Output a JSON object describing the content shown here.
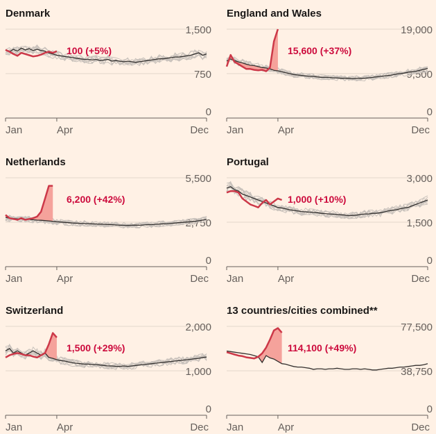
{
  "colors": {
    "background": "#fff1e5",
    "current_year": "#cc3848",
    "average": "#33302e",
    "historical": "#c8c1bb",
    "excess_fill": "#f5a29b",
    "grid": "#e3d6cc"
  },
  "chart_data": [
    {
      "type": "line",
      "title": "Denmark",
      "ylim": [
        0,
        1500
      ],
      "yticks": [
        "1,500",
        "750",
        "0"
      ],
      "ytick_values": [
        1500,
        750,
        0
      ],
      "xticks": [
        "Jan",
        "Apr",
        "Dec"
      ],
      "xtick_weeks": [
        1,
        14,
        52
      ],
      "annotation": "100 (+5%)",
      "shade_excess": false,
      "historical_lines": true,
      "series": [
        {
          "role": "current",
          "values": [
            1150,
            1120,
            1080,
            1050,
            1100,
            1080,
            1060,
            1040,
            1050,
            1070,
            1100,
            1120,
            1100,
            1130
          ]
        },
        {
          "role": "average",
          "values": [
            1150,
            1120,
            1160,
            1130,
            1180,
            1150,
            1170,
            1140,
            1160,
            1140,
            1130,
            1100,
            1080,
            1060,
            1050,
            1040,
            1030,
            1020,
            1010,
            1000,
            990,
            990,
            980,
            990,
            970,
            980,
            990,
            960,
            970,
            960,
            950,
            960,
            950,
            940,
            950,
            960,
            970,
            980,
            990,
            1000,
            1000,
            1010,
            1020,
            1030,
            1030,
            1040,
            1050,
            1060,
            1080,
            1100,
            1060,
            1080
          ]
        }
      ]
    },
    {
      "type": "line",
      "title": "England and Wales",
      "ylim": [
        0,
        19000
      ],
      "yticks": [
        "19,000",
        "9,500",
        "0"
      ],
      "ytick_values": [
        19000,
        9500,
        0
      ],
      "xticks": [
        "Jan",
        "Apr",
        "Dec"
      ],
      "xtick_weeks": [
        1,
        14,
        52
      ],
      "annotation": "15,600 (+37%)",
      "shade_excess": true,
      "historical_lines": true,
      "series": [
        {
          "role": "current",
          "values": [
            11000,
            13500,
            12000,
            11500,
            11000,
            10500,
            10500,
            10300,
            10200,
            10300,
            10000,
            10800,
            16400,
            19000
          ]
        },
        {
          "role": "average",
          "values": [
            12200,
            12600,
            12300,
            12000,
            11800,
            11500,
            11300,
            11200,
            11000,
            10800,
            10700,
            10500,
            10200,
            10100,
            9900,
            9700,
            9500,
            9300,
            9200,
            9100,
            9000,
            8900,
            8900,
            8800,
            8700,
            8700,
            8700,
            8600,
            8600,
            8500,
            8500,
            8500,
            8400,
            8500,
            8500,
            8500,
            8600,
            8700,
            8800,
            8900,
            9000,
            9100,
            9200,
            9400,
            9500,
            9600,
            9800,
            9900,
            10000,
            10200,
            10400,
            10600
          ]
        }
      ]
    },
    {
      "type": "line",
      "title": "Netherlands",
      "ylim": [
        0,
        5500
      ],
      "yticks": [
        "5,500",
        "2,750",
        "0"
      ],
      "ytick_values": [
        5500,
        2750,
        0
      ],
      "xticks": [
        "Jan",
        "Apr",
        "Dec"
      ],
      "xtick_weeks": [
        1,
        14,
        52
      ],
      "annotation": "6,200 (+42%)",
      "shade_excess": true,
      "historical_lines": true,
      "series": [
        {
          "role": "current",
          "values": [
            3200,
            3000,
            2950,
            2900,
            3000,
            2900,
            2950,
            3000,
            3100,
            3400,
            4200,
            5000,
            5000
          ]
        },
        {
          "role": "average",
          "values": [
            3050,
            3000,
            2980,
            2960,
            2950,
            2930,
            2920,
            2900,
            2880,
            2870,
            2850,
            2830,
            2800,
            2780,
            2760,
            2740,
            2720,
            2700,
            2690,
            2680,
            2670,
            2660,
            2650,
            2640,
            2630,
            2620,
            2610,
            2600,
            2580,
            2560,
            2560,
            2550,
            2560,
            2570,
            2560,
            2580,
            2600,
            2600,
            2620,
            2640,
            2650,
            2660,
            2680,
            2700,
            2720,
            2740,
            2760,
            2780,
            2800,
            2840,
            2880,
            2920
          ]
        }
      ]
    },
    {
      "type": "line",
      "title": "Portugal",
      "ylim": [
        0,
        3000
      ],
      "yticks": [
        "3,000",
        "1,500",
        "0"
      ],
      "ytick_values": [
        3000,
        1500,
        0
      ],
      "xticks": [
        "Jan",
        "Apr",
        "Dec"
      ],
      "xtick_weeks": [
        1,
        14,
        52
      ],
      "annotation": "1,000 (+10%)",
      "shade_excess": false,
      "historical_lines": true,
      "series": [
        {
          "role": "current",
          "values": [
            2500,
            2550,
            2550,
            2500,
            2300,
            2200,
            2100,
            2050,
            2000,
            2150,
            2250,
            2100,
            2200,
            2300,
            2250
          ]
        },
        {
          "role": "average",
          "values": [
            2650,
            2700,
            2600,
            2550,
            2450,
            2400,
            2350,
            2300,
            2250,
            2200,
            2150,
            2100,
            2050,
            2000,
            1980,
            1950,
            1920,
            1900,
            1880,
            1860,
            1850,
            1840,
            1830,
            1820,
            1800,
            1790,
            1780,
            1770,
            1760,
            1750,
            1740,
            1720,
            1730,
            1740,
            1760,
            1780,
            1780,
            1800,
            1800,
            1820,
            1850,
            1880,
            1900,
            1920,
            1950,
            1980,
            2000,
            2050,
            2100,
            2150,
            2200,
            2250
          ]
        }
      ]
    },
    {
      "type": "line",
      "title": "Switzerland",
      "ylim": [
        0,
        2000
      ],
      "yticks": [
        "2,000",
        "1,000",
        "0"
      ],
      "ytick_values": [
        2000,
        1000,
        0
      ],
      "xticks": [
        "Jan",
        "Apr",
        "Dec"
      ],
      "xtick_weeks": [
        1,
        14,
        52
      ],
      "annotation": "1,500 (+29%)",
      "shade_excess": true,
      "historical_lines": true,
      "series": [
        {
          "role": "current",
          "values": [
            1300,
            1350,
            1380,
            1400,
            1380,
            1350,
            1350,
            1320,
            1300,
            1350,
            1400,
            1600,
            1850,
            1750
          ]
        },
        {
          "role": "average",
          "values": [
            1450,
            1500,
            1400,
            1450,
            1400,
            1350,
            1400,
            1450,
            1400,
            1350,
            1400,
            1300,
            1280,
            1250,
            1230,
            1220,
            1200,
            1180,
            1170,
            1160,
            1150,
            1150,
            1140,
            1140,
            1130,
            1120,
            1110,
            1110,
            1100,
            1100,
            1110,
            1100,
            1110,
            1120,
            1130,
            1140,
            1150,
            1160,
            1170,
            1180,
            1190,
            1200,
            1210,
            1220,
            1230,
            1240,
            1250,
            1260,
            1270,
            1280,
            1300,
            1310
          ]
        }
      ]
    },
    {
      "type": "line",
      "title": "13 countries/cities combined**",
      "ylim": [
        0,
        77500
      ],
      "yticks": [
        "77,500",
        "38,750",
        "0"
      ],
      "ytick_values": [
        77500,
        38750,
        0
      ],
      "xticks": [
        "Jan",
        "Apr",
        "Dec"
      ],
      "xtick_weeks": [
        1,
        14,
        52
      ],
      "annotation": "114,100 (+49%)",
      "shade_excess": true,
      "historical_lines": false,
      "series": [
        {
          "role": "current",
          "values": [
            55000,
            54000,
            53000,
            52000,
            51500,
            50500,
            50000,
            49500,
            51000,
            54000,
            59000,
            66000,
            74000,
            76000,
            72000
          ]
        },
        {
          "role": "average",
          "values": [
            56000,
            55500,
            55000,
            54500,
            54000,
            53500,
            53000,
            52000,
            51000,
            46000,
            52000,
            50000,
            49000,
            47000,
            45000,
            44500,
            43500,
            42500,
            42000,
            42000,
            41500,
            41000,
            40000,
            40500,
            40500,
            40000,
            40500,
            40500,
            41000,
            40500,
            40000,
            40000,
            40500,
            40500,
            40000,
            40500,
            40000,
            39500,
            39500,
            40000,
            40500,
            41000,
            41000,
            41500,
            42000,
            42000,
            42500,
            43000,
            43500,
            43500,
            44000,
            45000
          ]
        }
      ]
    }
  ]
}
